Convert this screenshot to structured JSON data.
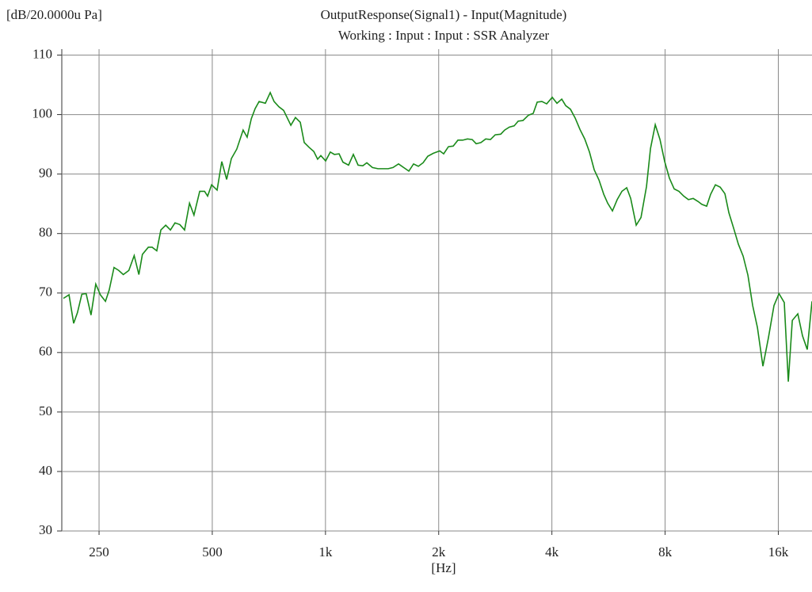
{
  "chart_data": {
    "type": "line",
    "unit_label": "[dB/20.0000u Pa]",
    "title": "OutputResponse(Signal1) - Input(Magnitude)",
    "subtitle": "Working : Input : Input : SSR Analyzer",
    "xlabel": "[Hz]",
    "xscale": "log",
    "grid": true,
    "color": "#1a8a1a",
    "xlim": [
      199,
      19665
    ],
    "ylim": [
      30,
      111
    ],
    "xticks": [
      250,
      500,
      {
        "value": 1000,
        "label": "1k"
      },
      {
        "value": 2000,
        "label": "2k"
      },
      {
        "value": 4000,
        "label": "4k"
      },
      {
        "value": 8000,
        "label": "8k"
      },
      {
        "value": 16000,
        "label": "16k"
      }
    ],
    "yticks": [
      30,
      40,
      50,
      60,
      70,
      80,
      90,
      100,
      110
    ],
    "x": [
      201,
      208,
      214,
      219,
      225,
      231,
      238,
      245,
      252,
      260,
      266,
      274,
      282,
      290,
      300,
      310,
      319,
      326,
      338,
      346,
      356,
      365,
      376,
      387,
      398,
      410,
      422,
      435,
      447,
      463,
      477,
      486,
      498,
      515,
      530,
      546,
      562,
      581,
      604,
      619,
      635,
      650,
      666,
      692,
      713,
      730,
      752,
      774,
      809,
      832,
      857,
      878,
      904,
      931,
      953,
      972,
      1001,
      1030,
      1056,
      1087,
      1113,
      1152,
      1186,
      1221,
      1257,
      1288,
      1333,
      1379,
      1468,
      1512,
      1564,
      1666,
      1715,
      1766,
      1818,
      1871,
      1936,
      2013,
      2062,
      2123,
      2186,
      2250,
      2317,
      2385,
      2456,
      2516,
      2590,
      2667,
      2746,
      2827,
      2924,
      2996,
      3084,
      3175,
      3254,
      3350,
      3466,
      3568,
      3656,
      3763,
      3874,
      4008,
      4126,
      4249,
      4353,
      4481,
      4614,
      4750,
      4891,
      5035,
      5184,
      5337,
      5495,
      5629,
      5795,
      5966,
      6142,
      6324,
      6480,
      6703,
      6902,
      7139,
      7316,
      7532,
      7754,
      7980,
      8214,
      8458,
      8707,
      8964,
      9229,
      9502,
      9783,
      10021,
      10318,
      10572,
      10885,
      11207,
      11538,
      11821,
      12171,
      12531,
      12901,
      13283,
      13675,
      14080,
      14561,
      15062,
      15582,
      16067,
      16595,
      17010,
      17431,
      18030,
      18556,
      19102,
      19665
    ],
    "values": [
      69.1,
      69.7,
      64.9,
      66.7,
      69.8,
      69.9,
      66.3,
      71.5,
      69.7,
      68.6,
      70.5,
      74.3,
      73.8,
      73.1,
      73.8,
      76.3,
      73.1,
      76.5,
      77.7,
      77.7,
      77.1,
      80.6,
      81.4,
      80.6,
      81.8,
      81.5,
      80.6,
      85.1,
      83.1,
      87.1,
      87.1,
      86.3,
      88.2,
      87.3,
      92.1,
      89.1,
      92.6,
      94.2,
      97.4,
      96.2,
      99.3,
      101.0,
      102.2,
      101.9,
      103.7,
      102.2,
      101.3,
      100.7,
      98.2,
      99.5,
      98.7,
      95.3,
      94.5,
      93.8,
      92.5,
      93.1,
      92.2,
      93.7,
      93.3,
      93.4,
      92.0,
      91.5,
      93.3,
      91.5,
      91.4,
      91.9,
      91.1,
      90.9,
      90.9,
      91.1,
      91.7,
      90.5,
      91.7,
      91.3,
      91.9,
      93.0,
      93.5,
      93.9,
      93.4,
      94.6,
      94.7,
      95.7,
      95.7,
      95.9,
      95.8,
      95.1,
      95.3,
      95.9,
      95.8,
      96.6,
      96.7,
      97.4,
      97.9,
      98.1,
      98.9,
      99.0,
      99.9,
      100.2,
      102.1,
      102.2,
      101.8,
      102.9,
      101.9,
      102.6,
      101.5,
      100.9,
      99.4,
      97.5,
      95.9,
      93.7,
      90.7,
      89.0,
      86.6,
      85.1,
      83.8,
      85.7,
      87.1,
      87.7,
      85.9,
      81.4,
      82.7,
      87.9,
      94.3,
      98.3,
      95.8,
      92.1,
      89.3,
      87.5,
      87.1,
      86.3,
      85.7,
      85.9,
      85.4,
      84.9,
      84.6,
      86.6,
      88.2,
      87.8,
      86.7,
      83.5,
      80.9,
      78.2,
      76.2,
      73.0,
      67.9,
      64.2,
      57.7,
      62.5,
      67.9,
      69.9,
      68.4,
      55.1,
      65.4,
      66.5,
      62.8,
      60.5,
      68.6
    ]
  }
}
